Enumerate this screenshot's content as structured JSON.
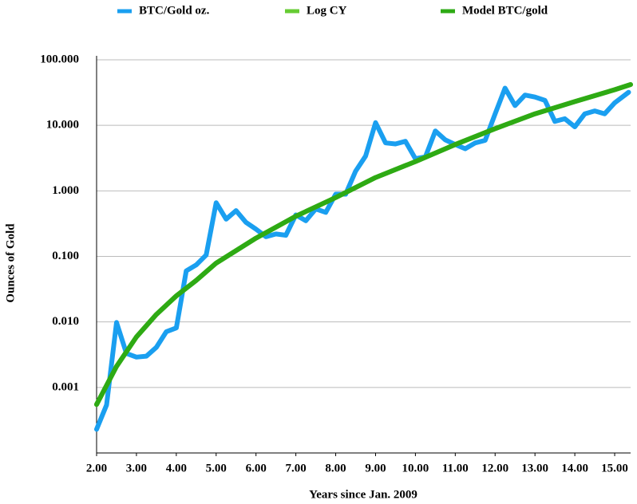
{
  "chart_data": {
    "type": "line",
    "y_label": "Ounces of Gold",
    "x_label": "Years since Jan. 2009",
    "log_y": true,
    "grid": true,
    "legend": "top",
    "xlim": [
      2,
      15.4
    ],
    "xticks": [
      {
        "value": 2,
        "label": "2.00"
      },
      {
        "value": 3,
        "label": "3.00"
      },
      {
        "value": 4,
        "label": "4.00"
      },
      {
        "value": 5,
        "label": "5.00"
      },
      {
        "value": 6,
        "label": "6.00"
      },
      {
        "value": 7,
        "label": "7.00"
      },
      {
        "value": 8,
        "label": "8.00"
      },
      {
        "value": 9,
        "label": "9.00"
      },
      {
        "value": 10,
        "label": "10.00"
      },
      {
        "value": 11,
        "label": "11.00"
      },
      {
        "value": 12,
        "label": "12.00"
      },
      {
        "value": 13,
        "label": "13.00"
      },
      {
        "value": 14,
        "label": "14.00"
      },
      {
        "value": 15,
        "label": "15.00"
      }
    ],
    "ylim": [
      0.0001,
      100
    ],
    "yticks": [
      {
        "value": 0.001,
        "label": "0.001"
      },
      {
        "value": 0.01,
        "label": "0.010"
      },
      {
        "value": 0.1,
        "label": "0.100"
      },
      {
        "value": 1,
        "label": "1.000"
      },
      {
        "value": 10,
        "label": "10.000"
      },
      {
        "value": 100,
        "label": "100.000"
      }
    ],
    "series": [
      {
        "name": "BTC/Gold oz.",
        "color": "#1a9ff0",
        "x": [
          2.0,
          2.25,
          2.5,
          2.75,
          3.0,
          3.25,
          3.5,
          3.75,
          4.0,
          4.25,
          4.5,
          4.75,
          5.0,
          5.25,
          5.5,
          5.75,
          6.0,
          6.25,
          6.5,
          6.75,
          7.0,
          7.25,
          7.5,
          7.75,
          8.0,
          8.25,
          8.5,
          8.75,
          9.0,
          9.25,
          9.5,
          9.75,
          10.0,
          10.25,
          10.5,
          10.75,
          11.0,
          11.25,
          11.5,
          11.75,
          12.0,
          12.25,
          12.5,
          12.75,
          13.0,
          13.25,
          13.5,
          13.75,
          14.0,
          14.25,
          14.5,
          14.75,
          15.0,
          15.35
        ],
        "values": [
          0.00023,
          0.00054,
          0.0098,
          0.0033,
          0.0029,
          0.003,
          0.0041,
          0.0071,
          0.0081,
          0.06,
          0.074,
          0.105,
          0.66,
          0.37,
          0.5,
          0.33,
          0.26,
          0.2,
          0.22,
          0.21,
          0.43,
          0.35,
          0.53,
          0.47,
          0.89,
          0.89,
          2.0,
          3.4,
          11,
          5.4,
          5.2,
          5.7,
          3.1,
          3.3,
          8.2,
          6.0,
          5.1,
          4.4,
          5.4,
          5.9,
          15,
          37,
          20,
          29,
          27,
          24,
          11.5,
          12.6,
          9.5,
          15,
          16.6,
          15,
          22,
          32
        ]
      },
      {
        "name": "Log CY",
        "color": "#66cc33",
        "x": [
          2,
          2.5,
          3,
          3.5,
          4,
          4.5,
          5,
          6,
          7,
          8,
          9,
          10,
          11,
          12,
          13,
          14,
          15,
          15.4
        ],
        "values": [
          0.00055,
          0.0021,
          0.0059,
          0.013,
          0.025,
          0.043,
          0.079,
          0.19,
          0.41,
          0.79,
          1.6,
          2.8,
          5.1,
          8.9,
          15,
          23,
          35,
          42
        ]
      },
      {
        "name": "Model BTC/gold",
        "color": "#2eaa14",
        "x": [
          2,
          2.5,
          3,
          3.5,
          4,
          4.5,
          5,
          6,
          7,
          8,
          9,
          10,
          11,
          12,
          13,
          14,
          15,
          15.4
        ],
        "values": [
          0.00055,
          0.0021,
          0.0059,
          0.013,
          0.025,
          0.043,
          0.079,
          0.19,
          0.41,
          0.79,
          1.6,
          2.8,
          5.1,
          8.9,
          15,
          23,
          35,
          42
        ]
      }
    ]
  }
}
